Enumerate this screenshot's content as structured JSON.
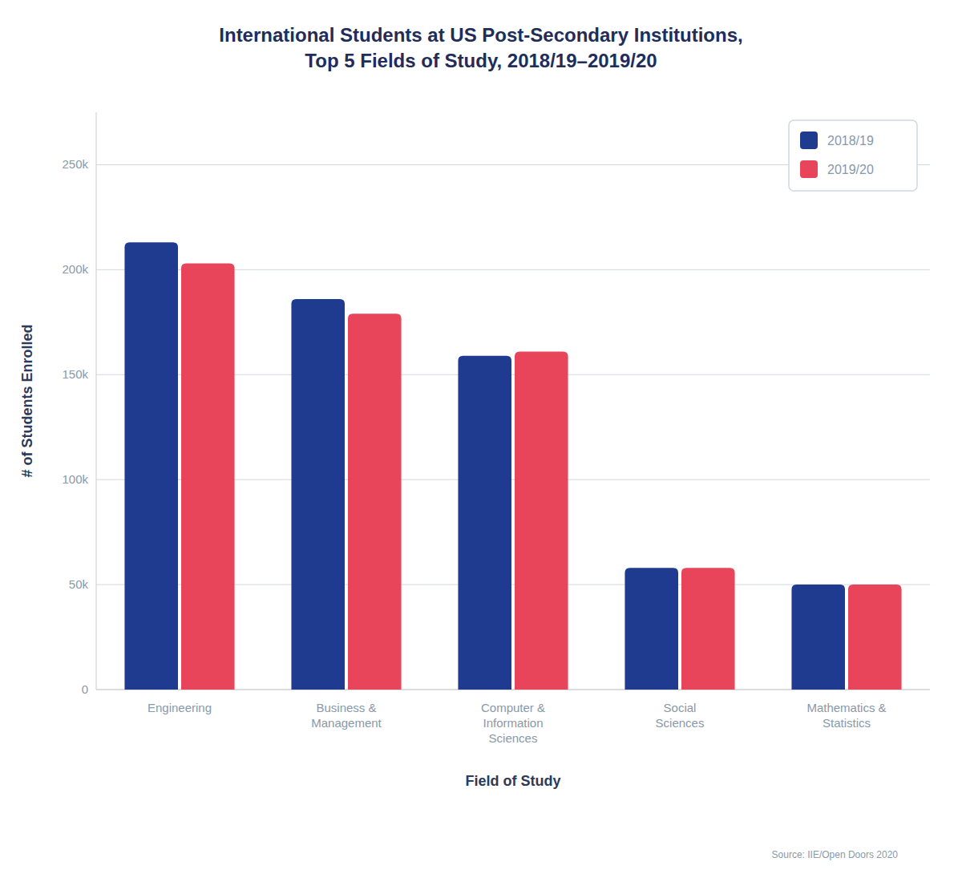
{
  "chart_data": {
    "type": "bar",
    "title": "International Students at US Post-Secondary Institutions,\nTop 5 Fields of Study, 2018/19–2019/20",
    "categories": [
      "Engineering",
      "Business &\nManagement",
      "Computer &\nInformation\nSciences",
      "Social\nSciences",
      "Mathematics &\nStatistics"
    ],
    "series": [
      {
        "name": "2018/19",
        "color": "#1f3b8f",
        "values": [
          213000,
          186000,
          159000,
          58000,
          50000
        ]
      },
      {
        "name": "2019/20",
        "color": "#e8445a",
        "values": [
          203000,
          179000,
          161000,
          58000,
          50000
        ]
      }
    ],
    "x_label": "Field of Study",
    "y_label": "# of Students Enrolled",
    "ylim": [
      0,
      275000
    ],
    "yticks": [
      0,
      {
        "value": 50000,
        "label": "50k"
      },
      {
        "value": 100000,
        "label": "100k"
      },
      {
        "value": 150000,
        "label": "150k"
      },
      {
        "value": 200000,
        "label": "200k"
      },
      {
        "value": 250000,
        "label": "250k"
      }
    ],
    "grid": true,
    "legend": "upper right",
    "annotations": [
      "Source: IIE/Open Doors 2020"
    ]
  }
}
